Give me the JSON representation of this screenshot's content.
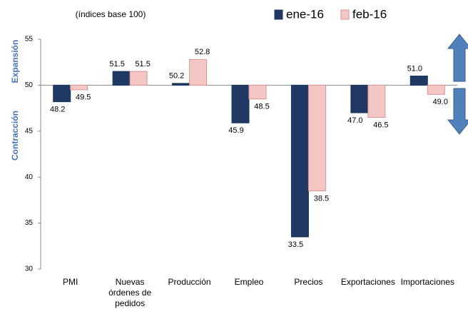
{
  "chart_data": {
    "type": "bar",
    "subtitle": "(índices base 100)",
    "categories": [
      "PMI",
      "Nuevas órdenes de pedidos",
      "Producción",
      "Empleo",
      "Precios",
      "Exportaciones",
      "Importaciones"
    ],
    "series": [
      {
        "name": "ene-16",
        "color": "#1f3864",
        "values": [
          48.2,
          51.5,
          50.2,
          45.9,
          33.5,
          47.0,
          51.0
        ],
        "value_labels": [
          "48.2",
          "51.5",
          "50.2",
          "45.9",
          "33.5",
          "47.0",
          "51.0"
        ]
      },
      {
        "name": "feb-16",
        "color": "#f4c6c4",
        "values": [
          49.5,
          51.5,
          52.8,
          48.5,
          38.5,
          46.5,
          49.0
        ],
        "value_labels": [
          "49.5",
          "51.5",
          "52.8",
          "48.5",
          "38.5",
          "46.5",
          "49.0"
        ]
      }
    ],
    "baseline": 50,
    "ylim": [
      30,
      55
    ],
    "yticks": [
      30,
      35,
      40,
      45,
      50,
      55
    ],
    "annotations": [
      "Expansión",
      "Contracción"
    ],
    "legend": "top"
  }
}
